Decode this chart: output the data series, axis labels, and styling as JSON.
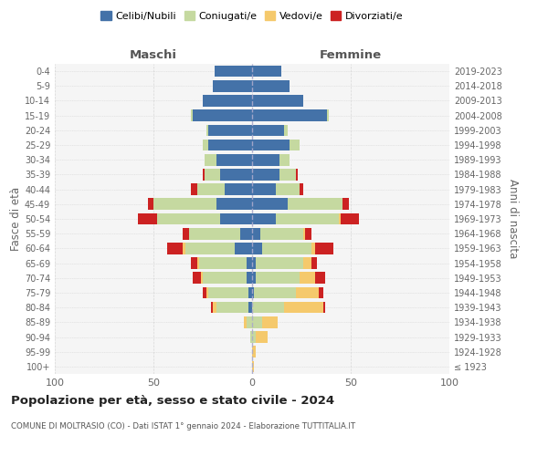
{
  "age_groups": [
    "100+",
    "95-99",
    "90-94",
    "85-89",
    "80-84",
    "75-79",
    "70-74",
    "65-69",
    "60-64",
    "55-59",
    "50-54",
    "45-49",
    "40-44",
    "35-39",
    "30-34",
    "25-29",
    "20-24",
    "15-19",
    "10-14",
    "5-9",
    "0-4"
  ],
  "birth_years": [
    "≤ 1923",
    "1924-1928",
    "1929-1933",
    "1934-1938",
    "1939-1943",
    "1944-1948",
    "1949-1953",
    "1954-1958",
    "1959-1963",
    "1964-1968",
    "1969-1973",
    "1974-1978",
    "1979-1983",
    "1984-1988",
    "1989-1993",
    "1994-1998",
    "1999-2003",
    "2004-2008",
    "2009-2013",
    "2014-2018",
    "2019-2023"
  ],
  "colors": {
    "celibe": "#4472a8",
    "coniugato": "#c5d9a0",
    "vedovo": "#f5c96c",
    "divorziato": "#cc2222"
  },
  "maschi": {
    "celibe": [
      0,
      0,
      0,
      0,
      2,
      2,
      3,
      3,
      9,
      6,
      16,
      18,
      14,
      16,
      18,
      22,
      22,
      30,
      25,
      20,
      19
    ],
    "coniugato": [
      0,
      0,
      1,
      3,
      16,
      20,
      22,
      24,
      25,
      26,
      32,
      32,
      14,
      8,
      6,
      3,
      1,
      1,
      0,
      0,
      0
    ],
    "vedovo": [
      0,
      0,
      0,
      1,
      2,
      1,
      1,
      1,
      1,
      0,
      0,
      0,
      0,
      0,
      0,
      0,
      0,
      0,
      0,
      0,
      0
    ],
    "divorziato": [
      0,
      0,
      0,
      0,
      1,
      2,
      4,
      3,
      8,
      3,
      10,
      3,
      3,
      1,
      0,
      0,
      0,
      0,
      0,
      0,
      0
    ]
  },
  "femmine": {
    "nubile": [
      0,
      0,
      0,
      0,
      0,
      1,
      2,
      2,
      5,
      4,
      12,
      18,
      12,
      14,
      14,
      19,
      16,
      38,
      26,
      19,
      15
    ],
    "coniugata": [
      0,
      0,
      2,
      5,
      16,
      21,
      22,
      24,
      25,
      22,
      32,
      28,
      12,
      8,
      5,
      5,
      2,
      1,
      0,
      0,
      0
    ],
    "vedova": [
      1,
      2,
      6,
      8,
      20,
      12,
      8,
      4,
      2,
      1,
      1,
      0,
      0,
      0,
      0,
      0,
      0,
      0,
      0,
      0,
      0
    ],
    "divorziata": [
      0,
      0,
      0,
      0,
      1,
      2,
      5,
      3,
      9,
      3,
      9,
      3,
      2,
      1,
      0,
      0,
      0,
      0,
      0,
      0,
      0
    ]
  },
  "xlim": [
    -100,
    100
  ],
  "xticks": [
    -100,
    -50,
    0,
    50,
    100
  ],
  "xticklabels": [
    "100",
    "50",
    "0",
    "50",
    "100"
  ],
  "title": "Popolazione per età, sesso e stato civile - 2024",
  "subtitle": "COMUNE DI MOLTRASIO (CO) - Dati ISTAT 1° gennaio 2024 - Elaborazione TUTTITALIA.IT",
  "ylabel_left": "Fasce di età",
  "ylabel_right": "Anni di nascita",
  "maschi_label": "Maschi",
  "femmine_label": "Femmine",
  "legend_labels": [
    "Celibi/Nubili",
    "Coniugati/e",
    "Vedovi/e",
    "Divorziati/e"
  ]
}
